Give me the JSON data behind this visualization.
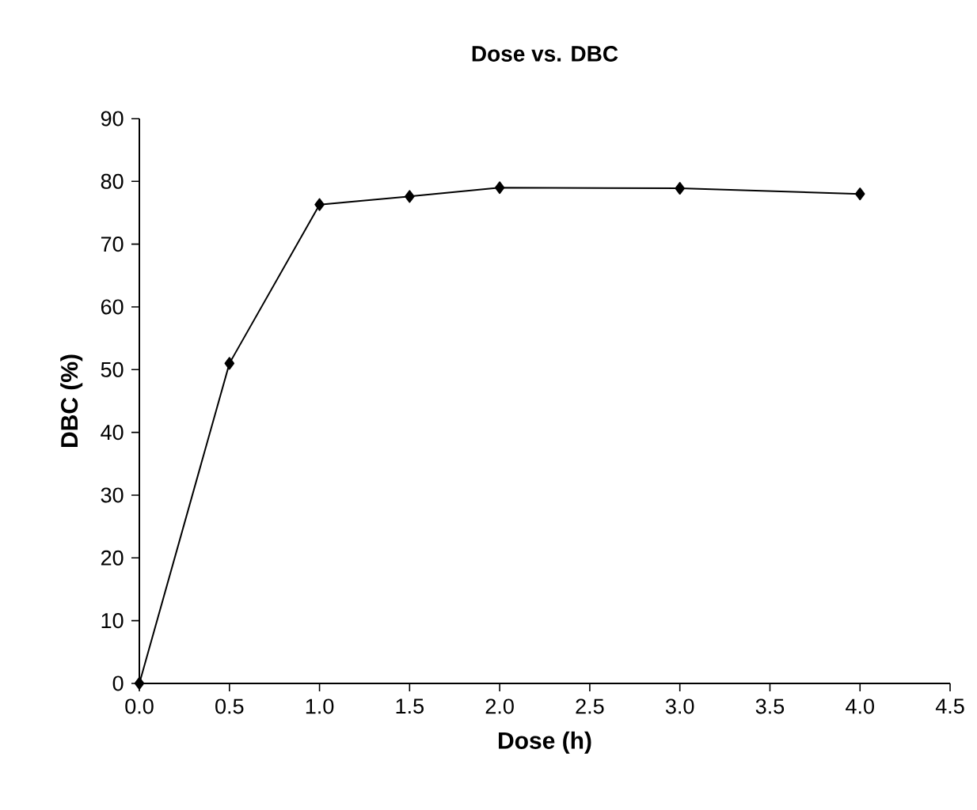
{
  "chart_data": {
    "type": "line",
    "title": "Dose vs. DBC",
    "xlabel": "Dose (h)",
    "ylabel": "DBC (%)",
    "x": [
      0,
      0.5,
      1,
      1.5,
      2,
      3,
      4
    ],
    "series": [
      {
        "color": "#000000",
        "values": [
          0,
          51,
          76.3,
          77.6,
          79,
          78.9,
          78
        ]
      }
    ],
    "xlim": [
      0,
      4.5
    ],
    "xticks": [
      {
        "value": 0,
        "label": "0.0"
      },
      {
        "value": 0.5,
        "label": "0.5"
      },
      {
        "value": 1,
        "label": "1.0"
      },
      {
        "value": 1.5,
        "label": "1.5"
      },
      {
        "value": 2,
        "label": "2.0"
      },
      {
        "value": 2.5,
        "label": "2.5"
      },
      {
        "value": 3,
        "label": "3.0"
      },
      {
        "value": 3.5,
        "label": "3.5"
      },
      {
        "value": 4,
        "label": "4.0"
      },
      {
        "value": 4.5,
        "label": "4.5"
      }
    ],
    "ylim": [
      0,
      90
    ],
    "yticks": [
      0,
      10,
      20,
      30,
      40,
      50,
      60,
      70,
      80,
      90
    ],
    "marker": "diamond",
    "line_style": "solid"
  }
}
